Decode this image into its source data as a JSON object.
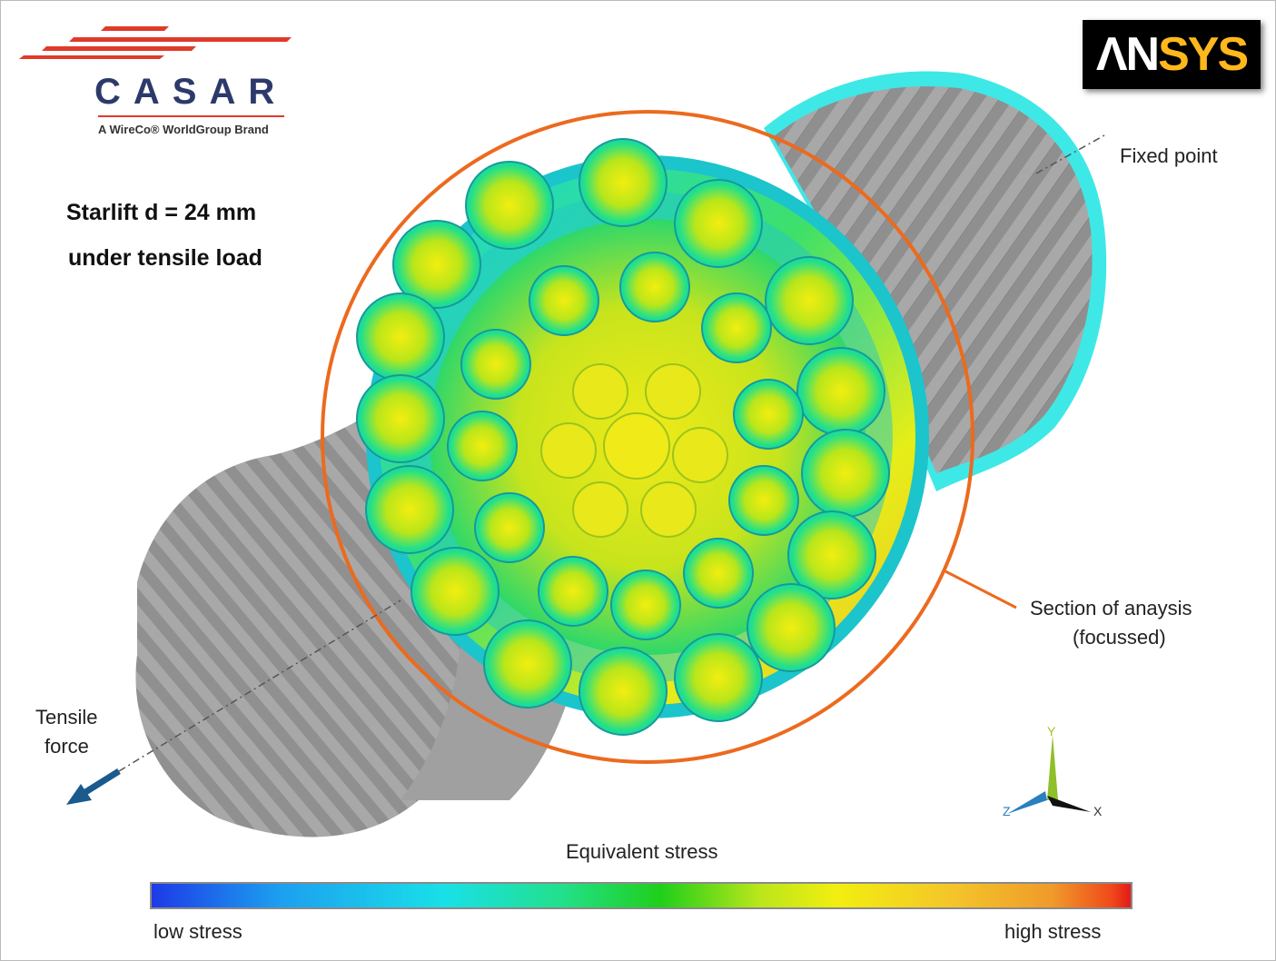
{
  "branding": {
    "casar_wordmark": "CASAR",
    "casar_tagline": "A WireCo® WorldGroup Brand",
    "ansys_an": "ΛN",
    "ansys_sys": "SYS",
    "ansys_brand": "ANSYS"
  },
  "title": {
    "line1": "Starlift  d = 24 mm",
    "line2": "under tensile load"
  },
  "annotations": {
    "fixed_point": "Fixed point",
    "section_line1": "Section  of anaysis",
    "section_line2": "(focussed)",
    "tensile_line1": "Tensile",
    "tensile_line2": "force"
  },
  "triad": {
    "x": "X",
    "y": "Y",
    "z": "Z"
  },
  "legend": {
    "title": "Equivalent  stress",
    "low": "low  stress",
    "high": "high  stress"
  },
  "colors": {
    "focus_circle": "#ec6a1e",
    "arrow": "#1a5a8c",
    "rope_gray": "#9a9a9a",
    "casar_red": "#e03a2a",
    "casar_blue": "#2c3a6b",
    "ansys_yellow": "#ffb81c"
  }
}
